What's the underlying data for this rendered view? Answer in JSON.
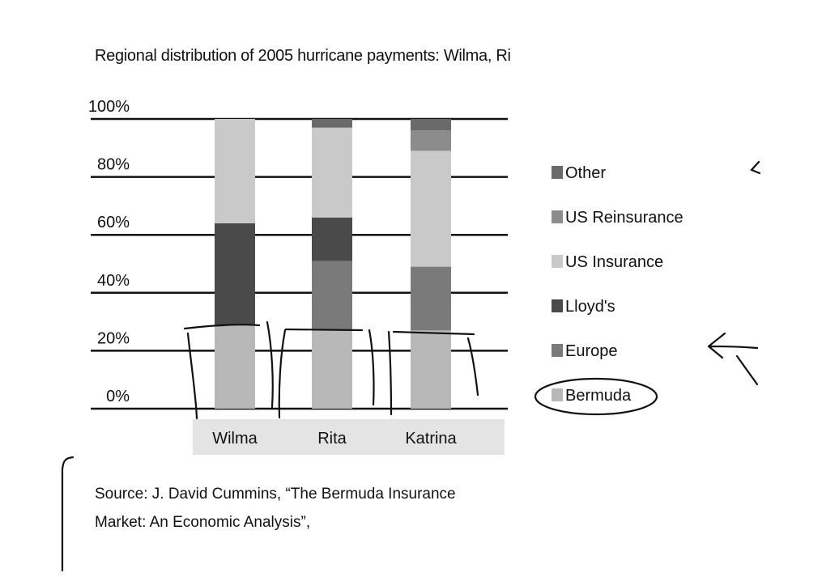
{
  "chart_data": {
    "type": "bar",
    "stacked": true,
    "title": "Regional distribution of 2005 hurricane payments: Wilma, Ri",
    "categories": [
      "Wilma",
      "Rita",
      "Katrina"
    ],
    "series": [
      {
        "name": "Bermuda",
        "values": [
          29,
          27,
          27
        ],
        "color": "#b8b8b8"
      },
      {
        "name": "Europe",
        "values": [
          0,
          24,
          22
        ],
        "color": "#7a7a7a"
      },
      {
        "name": "Lloyd's",
        "values": [
          35,
          15,
          0
        ],
        "color": "#4a4a4a"
      },
      {
        "name": "US Insurance",
        "values": [
          36,
          31,
          40
        ],
        "color": "#c9c9c9"
      },
      {
        "name": "US Reinsurance",
        "values": [
          0,
          0,
          7
        ],
        "color": "#8c8c8c"
      },
      {
        "name": "Other",
        "values": [
          0,
          3,
          4
        ],
        "color": "#6a6a6a"
      }
    ],
    "legend_order": [
      "Other",
      "US Reinsurance",
      "US Insurance",
      "Lloyd's",
      "Europe",
      "Bermuda"
    ],
    "yticks": [
      "0%",
      "20%",
      "40%",
      "60%",
      "80%",
      "100%"
    ],
    "ylim": [
      0,
      100
    ],
    "grid": true,
    "legend_placement": "right",
    "xlabel": "",
    "ylabel": ""
  },
  "source": {
    "line1": "Source: J. David Cummins, “The Bermuda Insurance",
    "line2": "Market: An Economic Analysis”,"
  }
}
